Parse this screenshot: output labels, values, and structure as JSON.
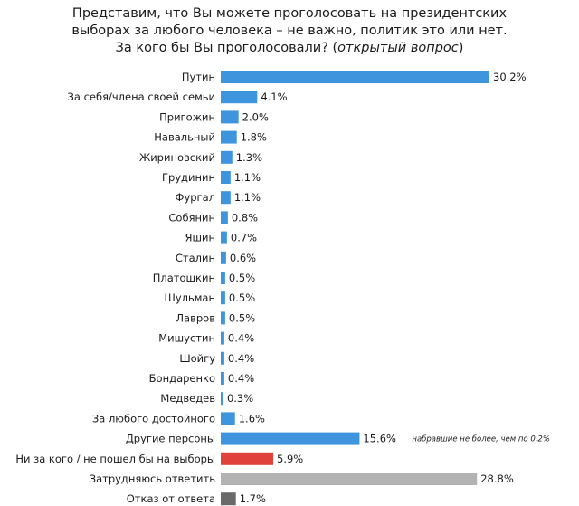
{
  "title": {
    "line1": "Представим, что Вы можете проголосовать на президентских",
    "line2": "выборах за любого человека – не важно, политик это или нет.",
    "line3_main": "За кого бы Вы проголосовали? (",
    "line3_italic": "открытый вопрос",
    "line3_end": ")"
  },
  "colors": {
    "blue": "#3e95dd",
    "red": "#e0413b",
    "gray": "#b3b3b3",
    "darkgray": "#6a6a6a"
  },
  "chart_data": {
    "type": "bar",
    "orientation": "horizontal",
    "categories": [
      "Путин",
      "За себя/члена своей семьи",
      "Пригожин",
      "Навальный",
      "Жириновский",
      "Грудинин",
      "Фургал",
      "Собянин",
      "Яшин",
      "Сталин",
      "Платошкин",
      "Шульман",
      "Лавров",
      "Мишустин",
      "Шойгу",
      "Бондаренко",
      "Медведев",
      "За любого достойного",
      "Другие персоны",
      "Ни за кого / не пошел бы на выборы",
      "Затрудняюсь ответить",
      "Отказ от ответа"
    ],
    "values": [
      30.2,
      4.1,
      2.0,
      1.8,
      1.3,
      1.1,
      1.1,
      0.8,
      0.7,
      0.6,
      0.5,
      0.5,
      0.5,
      0.4,
      0.4,
      0.4,
      0.3,
      1.6,
      15.6,
      5.9,
      28.8,
      1.7
    ],
    "value_labels": [
      "30.2%",
      "4.1%",
      "2.0%",
      "1.8%",
      "1.3%",
      "1.1%",
      "1.1%",
      "0.8%",
      "0.7%",
      "0.6%",
      "0.5%",
      "0.5%",
      "0.5%",
      "0.4%",
      "0.4%",
      "0.4%",
      "0.3%",
      "1.6%",
      "15.6%",
      "5.9%",
      "28.8%",
      "1.7%"
    ],
    "bar_colors": [
      "blue",
      "blue",
      "blue",
      "blue",
      "blue",
      "blue",
      "blue",
      "blue",
      "blue",
      "blue",
      "blue",
      "blue",
      "blue",
      "blue",
      "blue",
      "blue",
      "blue",
      "blue",
      "blue",
      "red",
      "gray",
      "darkgray"
    ],
    "annotations": [
      {
        "category": "Другие персоны",
        "text": "набравшие не более, чем по 0,2%"
      }
    ],
    "xlim": [
      0,
      30.2
    ]
  }
}
